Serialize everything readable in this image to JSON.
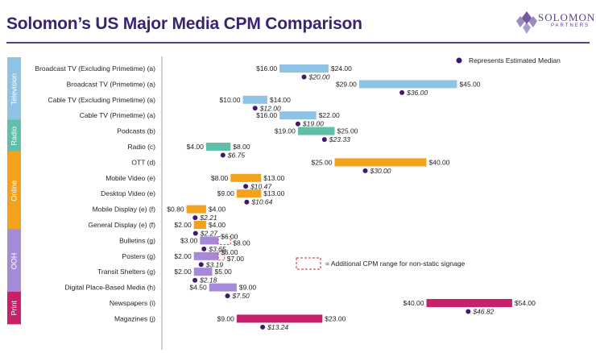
{
  "header": {
    "title": "Solomon’s US Major Media CPM Comparison",
    "logo_name": "SOLOMON",
    "logo_sub": "PARTNERS"
  },
  "colors": {
    "title": "#3a2373",
    "median_dot": "#3d1a6e",
    "Television": "#8fc3e6",
    "Radio": "#5fbfa9",
    "Online": "#f3a21c",
    "OOH": "#a58ad8",
    "Print": "#c8206a"
  },
  "chart_data": {
    "type": "bar",
    "subtype": "floating-range",
    "unit": "CPM ($)",
    "legend": {
      "median": "Represents Estimated Median",
      "dashed": "= Additional CPM range for non-static signage"
    },
    "groups": [
      {
        "name": "Television",
        "rows": [
          0,
          3
        ]
      },
      {
        "name": "Radio",
        "rows": [
          4,
          5
        ]
      },
      {
        "name": "Online",
        "rows": [
          6,
          10
        ]
      },
      {
        "name": "OOH",
        "rows": [
          11,
          14
        ]
      },
      {
        "name": "Print",
        "rows": [
          15,
          16
        ]
      }
    ],
    "rows": [
      {
        "label": "Broadcast TV (Excluding Primetime) (a)",
        "group": "Television",
        "low": 16.0,
        "high": 24.0,
        "low_label": "$16.00",
        "high_label": "$24.00",
        "median": 20.0,
        "median_label": "$20.00"
      },
      {
        "label": "Broadcast TV (Primetime) (a)",
        "group": "Television",
        "low": 29.0,
        "high": 45.0,
        "low_label": "$29.00",
        "high_label": "$45.00",
        "median": 36.0,
        "median_label": "$36.00"
      },
      {
        "label": "Cable TV (Excluding Primetime) (a)",
        "group": "Television",
        "low": 10.0,
        "high": 14.0,
        "low_label": "$10.00",
        "high_label": "$14.00",
        "median": 12.0,
        "median_label": "$12.00"
      },
      {
        "label": "Cable TV (Primetime) (a)",
        "group": "Television",
        "low": 16.0,
        "high": 22.0,
        "low_label": "$16.00",
        "high_label": "$22.00",
        "median": 19.0,
        "median_label": "$19.00"
      },
      {
        "label": "Podcasts (b)",
        "group": "Radio",
        "low": 19.0,
        "high": 25.0,
        "low_label": "$19.00",
        "high_label": "$25.00",
        "median": 23.33,
        "median_label": "$23.33"
      },
      {
        "label": "Radio (c)",
        "group": "Radio",
        "low": 4.0,
        "high": 8.0,
        "low_label": "$4.00",
        "high_label": "$8.00",
        "median": 6.75,
        "median_label": "$6.75"
      },
      {
        "label": "OTT (d)",
        "group": "Online",
        "low": 25.0,
        "high": 40.0,
        "low_label": "$25.00",
        "high_label": "$40.00",
        "median": 30.0,
        "median_label": "$30.00"
      },
      {
        "label": "Mobile Video (e)",
        "group": "Online",
        "low": 8.0,
        "high": 13.0,
        "low_label": "$8.00",
        "high_label": "$13.00",
        "median": 10.47,
        "median_label": "$10.47"
      },
      {
        "label": "Desktop Video (e)",
        "group": "Online",
        "low": 9.0,
        "high": 13.0,
        "low_label": "$9.00",
        "high_label": "$13.00",
        "median": 10.64,
        "median_label": "$10.64"
      },
      {
        "label": "Mobile Display (e) (f)",
        "group": "Online",
        "low": 0.8,
        "high": 4.0,
        "low_label": "$0.80",
        "high_label": "$4.00",
        "median": 2.21,
        "median_label": "$2.21"
      },
      {
        "label": "General Display (e) (f)",
        "group": "Online",
        "low": 2.0,
        "high": 4.0,
        "low_label": "$2.00",
        "high_label": "$4.00",
        "median": 2.27,
        "median_label": "$2.27"
      },
      {
        "label": "Bulletins (g)",
        "group": "OOH",
        "low": 3.0,
        "high": 6.0,
        "low_label": "$3.00",
        "high_label": "$6.00",
        "ext_high": 8.0,
        "ext_label": "$8.00",
        "median": 3.65,
        "median_label": "$3.65"
      },
      {
        "label": "Posters (g)",
        "group": "OOH",
        "low": 2.0,
        "high": 6.0,
        "low_label": "$2.00",
        "high_label": "$6.00",
        "ext_high": 7.0,
        "ext_label": "$7.00",
        "median": 3.19,
        "median_label": "$3.19"
      },
      {
        "label": "Transit Shelters (g)",
        "group": "OOH",
        "low": 2.0,
        "high": 5.0,
        "low_label": "$2.00",
        "high_label": "$5.00",
        "median": 2.18,
        "median_label": "$2.18"
      },
      {
        "label": "Digital Place-Based Media (h)",
        "group": "OOH",
        "low": 4.5,
        "high": 9.0,
        "low_label": "$4.50",
        "high_label": "$9.00",
        "median": 7.5,
        "median_label": "$7.50"
      },
      {
        "label": "Newspapers (i)",
        "group": "Print",
        "low": 40.0,
        "high": 54.0,
        "low_label": "$40.00",
        "high_label": "$54.00",
        "median": 46.82,
        "median_label": "$46.82"
      },
      {
        "label": "Magazines (j)",
        "group": "Print",
        "low": 9.0,
        "high": 23.0,
        "low_label": "$9.00",
        "high_label": "$23.00",
        "median": 13.24,
        "median_label": "$13.24"
      }
    ]
  }
}
